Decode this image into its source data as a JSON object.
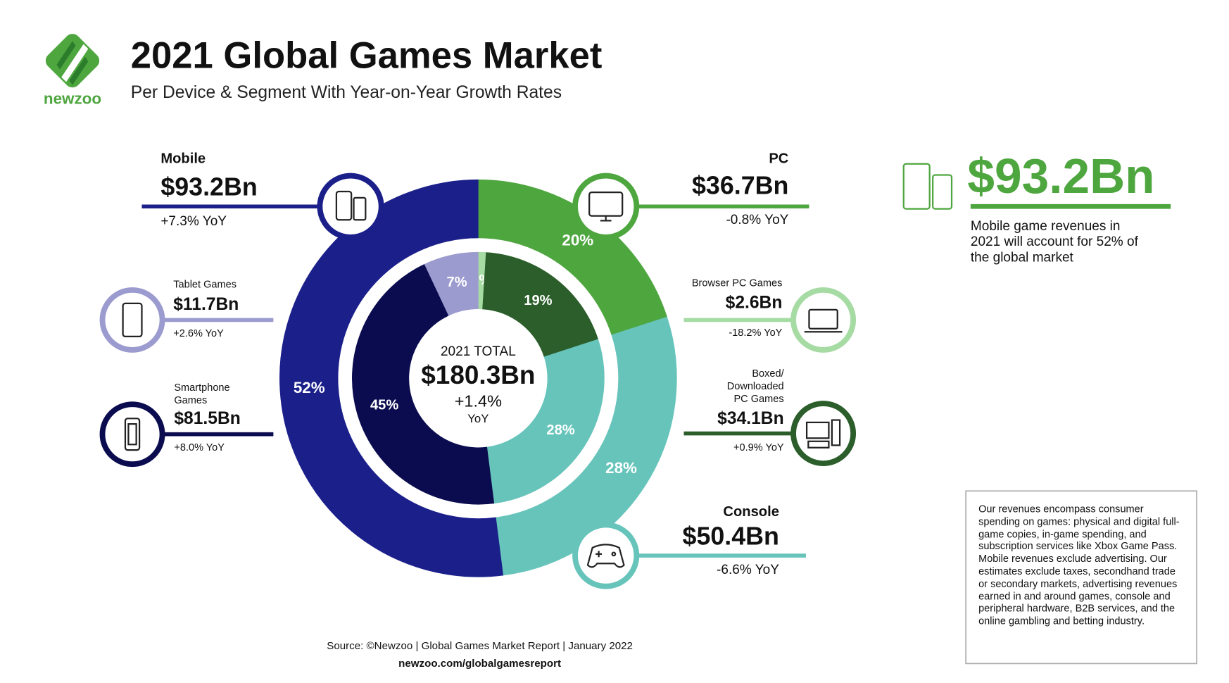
{
  "logo": "newzoo",
  "chart_data": {
    "type": "donut",
    "title": "2021 Global Games Market",
    "subtitle": "Per Device & Segment With Year-on-Year Growth Rates",
    "center": {
      "label": "2021 TOTAL",
      "value": "$180.3Bn",
      "growth": "+1.4%",
      "growth_unit": "YoY"
    },
    "outer": {
      "categories": [
        "PC",
        "Console",
        "Mobile"
      ],
      "values": [
        20,
        28,
        52
      ],
      "value_labels": [
        "20%",
        "28%",
        "52%"
      ],
      "colors": [
        "#4ea63f",
        "#67c4bb",
        "#1a1f8a"
      ],
      "revenues": [
        "$36.7Bn",
        "$50.4Bn",
        "$93.2Bn"
      ],
      "growth": [
        "-0.8% YoY",
        "-6.6% YoY",
        "+7.3% YoY"
      ]
    },
    "inner": {
      "categories": [
        "Browser PC Games",
        "Boxed/ Downloaded PC Games",
        null,
        "Smartphone Games",
        "Tablet Games"
      ],
      "values": [
        1,
        19,
        28,
        45,
        7
      ],
      "value_labels": [
        "1%",
        "19%",
        "28%",
        "45%",
        "7%"
      ],
      "colors": [
        "#a6dba3",
        "#2b5e2a",
        "#67c4bb",
        "#0b0c4f",
        "#9b9bcf"
      ],
      "revenues": [
        "$2.6Bn",
        "$34.1Bn",
        null,
        "$81.5Bn",
        "$11.7Bn"
      ],
      "growth": [
        "-18.2% YoY",
        "+0.9% YoY",
        null,
        "+8.0% YoY",
        "+2.6% YoY"
      ]
    }
  },
  "highlight": {
    "value": "$93.2Bn",
    "text": "Mobile game revenues in 2021 will account for 52% of the global market"
  },
  "note": "Our revenues encompass consumer spending on games: physical and digital full-game copies, in-game spending, and subscription services like Xbox Game Pass. Mobile revenues exclude advertising. Our estimates exclude taxes, secondhand trade or secondary markets, advertising revenues earned in and around games, console and peripheral hardware, B2B services, and the online gambling and betting industry.",
  "source": "Source: ©Newzoo | Global Games Market Report | January 2022",
  "url": "newzoo.com/globalgamesreport"
}
